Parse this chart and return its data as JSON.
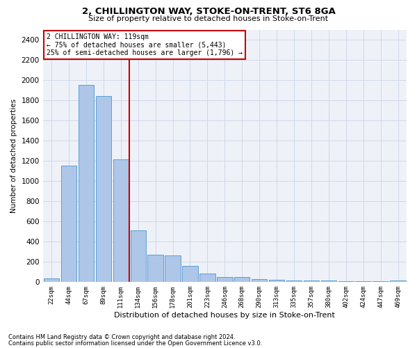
{
  "title1": "2, CHILLINGTON WAY, STOKE-ON-TRENT, ST6 8GA",
  "title2": "Size of property relative to detached houses in Stoke-on-Trent",
  "xlabel": "Distribution of detached houses by size in Stoke-on-Trent",
  "ylabel": "Number of detached properties",
  "categories": [
    "22sqm",
    "44sqm",
    "67sqm",
    "89sqm",
    "111sqm",
    "134sqm",
    "156sqm",
    "178sqm",
    "201sqm",
    "223sqm",
    "246sqm",
    "268sqm",
    "290sqm",
    "313sqm",
    "335sqm",
    "357sqm",
    "380sqm",
    "402sqm",
    "424sqm",
    "447sqm",
    "469sqm"
  ],
  "values": [
    30,
    1150,
    1950,
    1840,
    1210,
    510,
    265,
    260,
    155,
    80,
    50,
    45,
    25,
    20,
    10,
    15,
    10,
    5,
    5,
    5,
    10
  ],
  "bar_color": "#aec6e8",
  "bar_edge_color": "#5a9fd4",
  "vline_x_index": 4,
  "vline_color": "#cc0000",
  "annotation_line1": "2 CHILLINGTON WAY: 119sqm",
  "annotation_line2": "← 75% of detached houses are smaller (5,443)",
  "annotation_line3": "25% of semi-detached houses are larger (1,796) →",
  "annotation_box_color": "#ffffff",
  "annotation_box_edgecolor": "#cc0000",
  "ylim": [
    0,
    2500
  ],
  "yticks": [
    0,
    200,
    400,
    600,
    800,
    1000,
    1200,
    1400,
    1600,
    1800,
    2000,
    2200,
    2400
  ],
  "footnote1": "Contains HM Land Registry data © Crown copyright and database right 2024.",
  "footnote2": "Contains public sector information licensed under the Open Government Licence v3.0.",
  "grid_color": "#d0d8e8",
  "bg_color": "#eef2f8",
  "fig_width": 6.0,
  "fig_height": 5.0,
  "fig_dpi": 100
}
